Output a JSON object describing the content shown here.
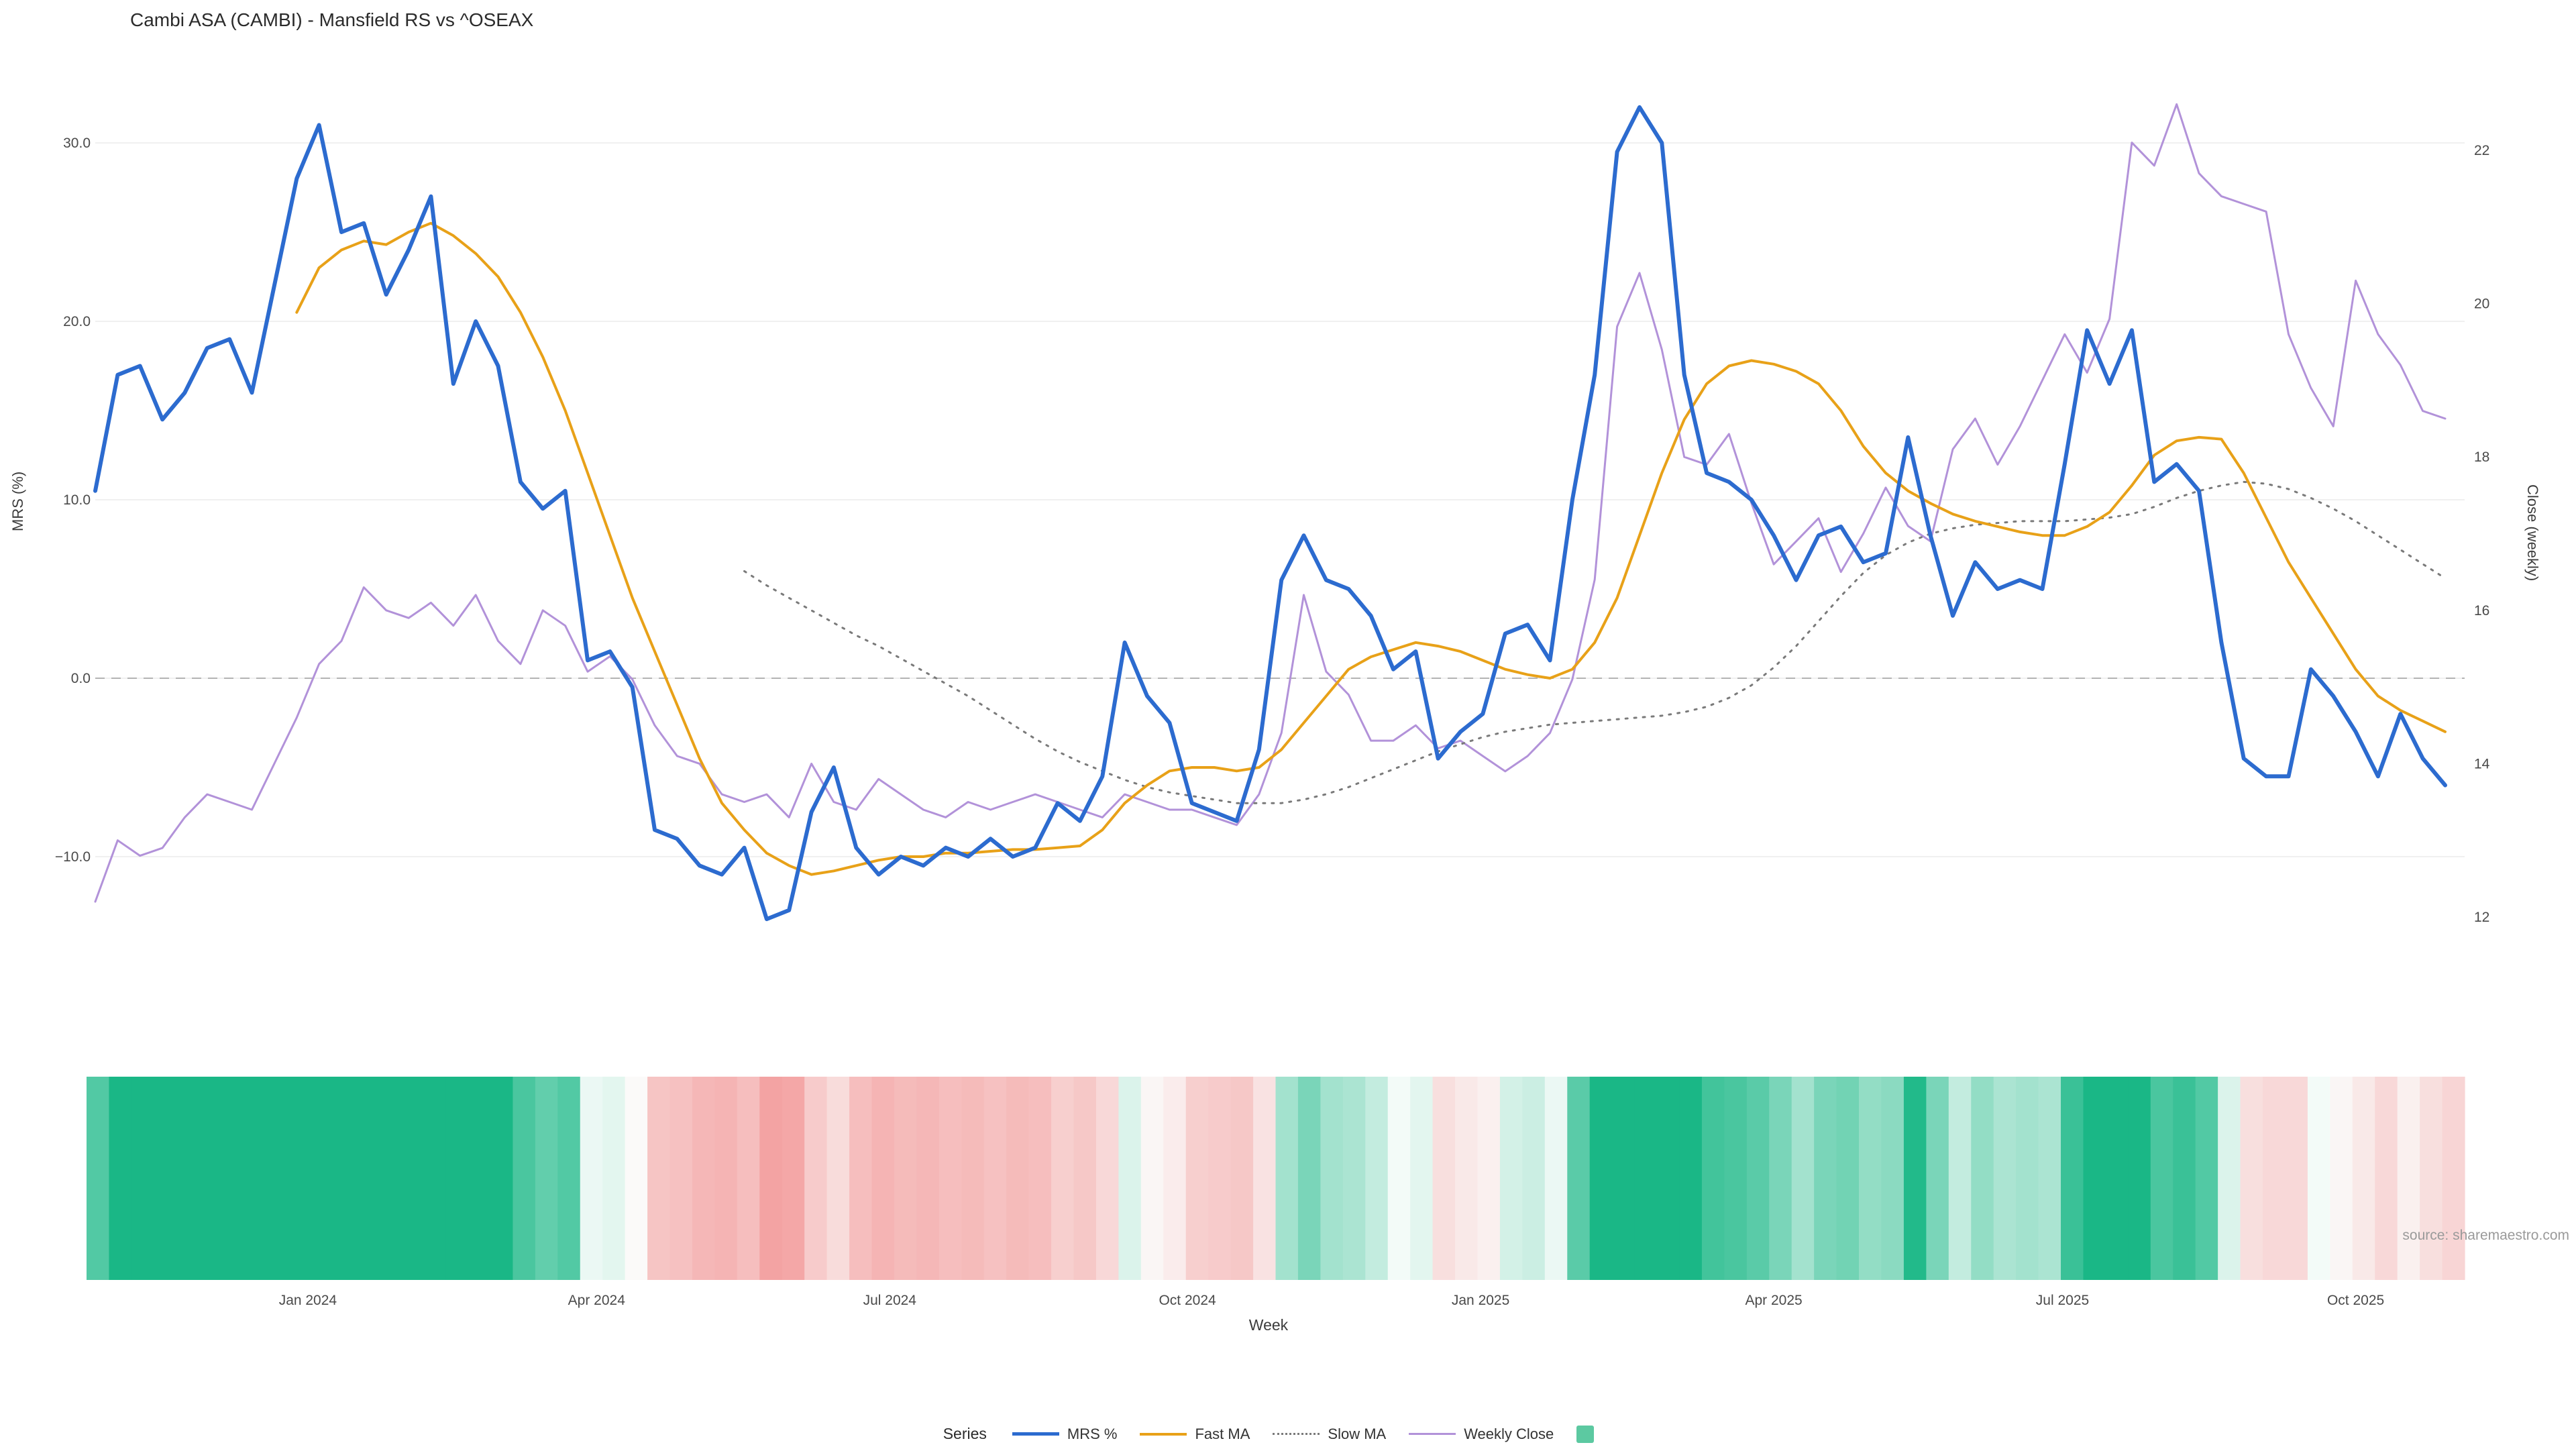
{
  "title": "Cambi ASA (CAMBI) - Mansfield RS vs ^OSEAX",
  "source": "source: sharemaestro.com",
  "colors": {
    "background": "#ffffff",
    "mrs_line": "#2c6bcf",
    "fast_ma_line": "#e8a118",
    "slow_ma_line": "#7a7a7a",
    "weekly_close_line": "#b292d9",
    "zero_line": "#b3b3b3",
    "gridline": "#f0f0f0",
    "heatmap_positive": "#1ab786",
    "heatmap_negative": "#f3a0a0"
  },
  "axes": {
    "left": {
      "title": "MRS (%)",
      "ticks": [
        {
          "value": 30,
          "label": "30.0"
        },
        {
          "value": 20,
          "label": "20.0"
        },
        {
          "value": 10,
          "label": "10.0"
        },
        {
          "value": 0,
          "label": "0.0"
        },
        {
          "value": -10,
          "label": "−10.0"
        }
      ]
    },
    "right": {
      "title": "Close (weekly)",
      "ticks": [
        {
          "value": 22,
          "label": "22"
        },
        {
          "value": 20,
          "label": "20"
        },
        {
          "value": 18,
          "label": "18"
        },
        {
          "value": 16,
          "label": "16"
        },
        {
          "value": 14,
          "label": "14"
        },
        {
          "value": 12,
          "label": "12"
        }
      ]
    },
    "x": {
      "title": "Week",
      "ticks": [
        {
          "week": 9.5,
          "label": "Jan 2024"
        },
        {
          "week": 22.4,
          "label": "Apr 2024"
        },
        {
          "week": 35.5,
          "label": "Jul 2024"
        },
        {
          "week": 48.8,
          "label": "Oct 2024"
        },
        {
          "week": 61.9,
          "label": "Jan 2025"
        },
        {
          "week": 75.0,
          "label": "Apr 2025"
        },
        {
          "week": 87.9,
          "label": "Jul 2025"
        },
        {
          "week": 101.0,
          "label": "Oct 2025"
        }
      ]
    }
  },
  "legend": {
    "label": "Series",
    "entries": [
      {
        "name": "MRS %",
        "color": "#2c6bcf",
        "style": "solid",
        "thickness": 5
      },
      {
        "name": "Fast MA",
        "color": "#e8a118",
        "style": "solid",
        "thickness": 4
      },
      {
        "name": "Slow MA",
        "color": "#7a7a7a",
        "style": "dotted",
        "thickness": 3
      },
      {
        "name": "Weekly Close",
        "color": "#b292d9",
        "style": "solid",
        "thickness": 3
      },
      {
        "name": "",
        "color": "#5cc9a1",
        "style": "swatch",
        "thickness": 0
      }
    ]
  },
  "chart_data": {
    "type": "line",
    "x_unit": "week_index",
    "weeks": 106,
    "zero_line": {
      "value": 0,
      "style": "dashed"
    },
    "series": [
      {
        "name": "MRS %",
        "axis": "left",
        "color": "#2c6bcf",
        "width": 6,
        "dash": null,
        "values": [
          10.5,
          17.0,
          17.5,
          14.5,
          16.0,
          18.5,
          19.0,
          16.0,
          22.0,
          28.0,
          31.0,
          25.0,
          25.5,
          21.5,
          24.0,
          27.0,
          16.5,
          20.0,
          17.5,
          11.0,
          9.5,
          10.5,
          1.0,
          1.5,
          -0.5,
          -8.5,
          -9.0,
          -10.5,
          -11.0,
          -9.5,
          -13.5,
          -13.0,
          -7.5,
          -5.0,
          -9.5,
          -11.0,
          -10.0,
          -10.5,
          -9.5,
          -10.0,
          -9.0,
          -10.0,
          -9.5,
          -7.0,
          -8.0,
          -5.5,
          2.0,
          -1.0,
          -2.5,
          -7.0,
          -7.5,
          -8.0,
          -4.0,
          5.5,
          8.0,
          5.5,
          5.0,
          3.5,
          0.5,
          1.5,
          -4.5,
          -3.0,
          -2.0,
          2.5,
          3.0,
          1.0,
          10.0,
          17.0,
          29.5,
          32.0,
          30.0,
          17.0,
          11.5,
          11.0,
          10.0,
          8.0,
          5.5,
          8.0,
          8.5,
          6.5,
          7.0,
          13.5,
          8.0,
          3.5,
          6.5,
          5.0,
          5.5,
          5.0,
          12.0,
          19.5,
          16.5,
          19.5,
          11.0,
          12.0,
          10.5,
          2.0,
          -4.5,
          -5.5,
          -5.5,
          0.5,
          -1.0,
          -3.0,
          -5.5,
          -2.0,
          -4.5,
          -6.0
        ]
      },
      {
        "name": "Fast MA",
        "axis": "left",
        "color": "#e8a118",
        "width": 4,
        "dash": null,
        "values": [
          null,
          null,
          null,
          null,
          null,
          null,
          null,
          null,
          null,
          20.5,
          23.0,
          24.0,
          24.5,
          24.3,
          25.0,
          25.5,
          24.8,
          23.8,
          22.5,
          20.5,
          18.0,
          15.0,
          11.5,
          8.0,
          4.5,
          1.5,
          -1.5,
          -4.5,
          -7.0,
          -8.5,
          -9.8,
          -10.5,
          -11.0,
          -10.8,
          -10.5,
          -10.2,
          -10.0,
          -10.0,
          -9.8,
          -9.8,
          -9.7,
          -9.6,
          -9.6,
          -9.5,
          -9.4,
          -8.5,
          -7.0,
          -6.0,
          -5.2,
          -5.0,
          -5.0,
          -5.2,
          -5.0,
          -4.0,
          -2.5,
          -1.0,
          0.5,
          1.2,
          1.6,
          2.0,
          1.8,
          1.5,
          1.0,
          0.5,
          0.2,
          0.0,
          0.5,
          2.0,
          4.5,
          8.0,
          11.5,
          14.5,
          16.5,
          17.5,
          17.8,
          17.6,
          17.2,
          16.5,
          15.0,
          13.0,
          11.5,
          10.5,
          9.8,
          9.2,
          8.8,
          8.5,
          8.2,
          8.0,
          8.0,
          8.5,
          9.3,
          10.8,
          12.5,
          13.3,
          13.5,
          13.4,
          11.5,
          9.0,
          6.5,
          4.5,
          2.5,
          0.5,
          -1.0,
          -1.8,
          -2.4,
          -3.0
        ]
      },
      {
        "name": "Slow MA",
        "axis": "left",
        "color": "#7a7a7a",
        "width": 3,
        "dash": "3 10",
        "values": [
          null,
          null,
          null,
          null,
          null,
          null,
          null,
          null,
          null,
          null,
          null,
          null,
          null,
          null,
          null,
          null,
          null,
          null,
          null,
          null,
          null,
          null,
          null,
          null,
          null,
          null,
          null,
          null,
          null,
          6.0,
          5.2,
          4.5,
          3.8,
          3.1,
          2.4,
          1.8,
          1.1,
          0.4,
          -0.3,
          -1.0,
          -1.8,
          -2.6,
          -3.4,
          -4.1,
          -4.7,
          -5.2,
          -5.7,
          -6.1,
          -6.4,
          -6.6,
          -6.8,
          -7.0,
          -7.0,
          -7.0,
          -6.8,
          -6.5,
          -6.1,
          -5.6,
          -5.1,
          -4.6,
          -4.1,
          -3.7,
          -3.3,
          -3.0,
          -2.8,
          -2.6,
          -2.5,
          -2.4,
          -2.3,
          -2.2,
          -2.1,
          -1.9,
          -1.6,
          -1.1,
          -0.4,
          0.6,
          1.8,
          3.2,
          4.6,
          5.9,
          6.9,
          7.6,
          8.1,
          8.4,
          8.6,
          8.7,
          8.8,
          8.8,
          8.8,
          8.9,
          9.0,
          9.2,
          9.6,
          10.1,
          10.5,
          10.8,
          11.0,
          10.9,
          10.6,
          10.1,
          9.5,
          8.8,
          8.0,
          7.2,
          6.4,
          5.6
        ]
      },
      {
        "name": "Weekly Close",
        "axis": "right",
        "color": "#b292d9",
        "width": 3,
        "dash": null,
        "values": [
          12.2,
          13.0,
          12.8,
          12.9,
          13.3,
          13.6,
          13.5,
          13.4,
          14.0,
          14.6,
          15.3,
          15.6,
          16.3,
          16.0,
          15.9,
          16.1,
          15.8,
          16.2,
          15.6,
          15.3,
          16.0,
          15.8,
          15.2,
          15.4,
          15.1,
          14.5,
          14.1,
          14.0,
          13.6,
          13.5,
          13.6,
          13.3,
          14.0,
          13.5,
          13.4,
          13.8,
          13.6,
          13.4,
          13.3,
          13.5,
          13.4,
          13.5,
          13.6,
          13.5,
          13.4,
          13.3,
          13.6,
          13.5,
          13.4,
          13.4,
          13.3,
          13.2,
          13.6,
          14.4,
          16.2,
          15.2,
          14.9,
          14.3,
          14.3,
          14.5,
          14.2,
          14.3,
          14.1,
          13.9,
          14.1,
          14.4,
          15.1,
          16.4,
          19.7,
          20.4,
          19.4,
          18.0,
          17.9,
          18.3,
          17.4,
          16.6,
          16.9,
          17.2,
          16.5,
          17.0,
          17.6,
          17.1,
          16.9,
          18.1,
          18.5,
          17.9,
          18.4,
          19.0,
          19.6,
          19.1,
          19.8,
          22.1,
          21.8,
          22.6,
          21.7,
          21.4,
          21.3,
          21.2,
          19.6,
          18.9,
          18.4,
          20.3,
          19.6,
          19.2,
          18.6,
          18.5
        ]
      }
    ],
    "heatmap": {
      "based_on": "MRS %",
      "positive_color": "#1ab786",
      "negative_color": "#f3a0a0",
      "neutral_color": "#fbfdfc",
      "max_abs": 14
    }
  }
}
